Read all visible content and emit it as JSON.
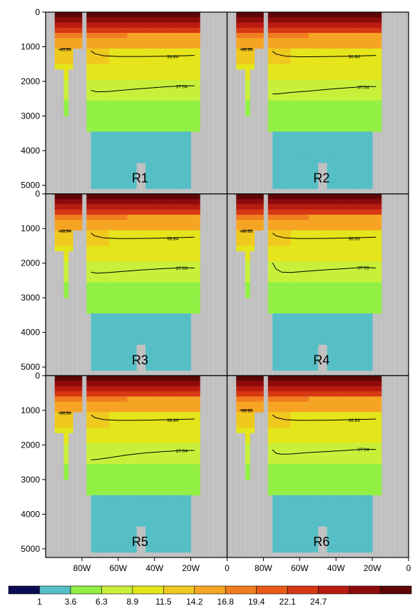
{
  "chart_data": {
    "type": "heatmap",
    "description_scale": "depth section",
    "colors": {
      "land": "#c0c0c0",
      "outline": "#000000"
    },
    "colorbar": {
      "labels": [
        "1",
        "3.6",
        "6.3",
        "8.9",
        "11.5",
        "14.2",
        "16.8",
        "19.4",
        "22.1",
        "24.7"
      ],
      "colors": [
        "#0c0c54",
        "#56bfc6",
        "#92f045",
        "#c8f03b",
        "#e5e51c",
        "#f0c91e",
        "#f5a523",
        "#f27d20",
        "#ea5a19",
        "#d63815",
        "#b81c10",
        "#8e0b0b",
        "#5e0606"
      ]
    },
    "x_axis": {
      "ticks": [
        "80W",
        "60W",
        "40W",
        "20W",
        "0"
      ]
    },
    "y_axis": {
      "ticks": [
        "0",
        "1000",
        "2000",
        "3000",
        "4000",
        "5000"
      ]
    },
    "panels": [
      {
        "label": "R1",
        "contours": [
          {
            "label": "36.84",
            "points": [
              [
                -93,
                1080
              ],
              [
                -89,
                1060
              ],
              [
                -86,
                1060
              ]
            ]
          },
          {
            "label": "36.84",
            "points": [
              [
                -75,
                1120
              ],
              [
                -73,
                1200
              ],
              [
                -68,
                1260
              ],
              [
                -60,
                1280
              ],
              [
                -45,
                1280
              ],
              [
                -30,
                1270
              ],
              [
                -18,
                1250
              ]
            ]
          },
          {
            "label": "37.04",
            "points": [
              [
                -75,
                2260
              ],
              [
                -72,
                2300
              ],
              [
                -65,
                2290
              ],
              [
                -55,
                2240
              ],
              [
                -45,
                2200
              ],
              [
                -35,
                2160
              ],
              [
                -25,
                2130
              ],
              [
                -18,
                2130
              ]
            ]
          }
        ]
      },
      {
        "label": "R2",
        "contours": [
          {
            "label": "36.84",
            "points": [
              [
                -93,
                1080
              ],
              [
                -89,
                1060
              ],
              [
                -86,
                1060
              ]
            ]
          },
          {
            "label": "36.84",
            "points": [
              [
                -75,
                1130
              ],
              [
                -73,
                1210
              ],
              [
                -68,
                1270
              ],
              [
                -60,
                1290
              ],
              [
                -45,
                1285
              ],
              [
                -30,
                1270
              ],
              [
                -18,
                1250
              ]
            ]
          },
          {
            "label": "37.04",
            "points": [
              [
                -75,
                2360
              ],
              [
                -72,
                2360
              ],
              [
                -65,
                2320
              ],
              [
                -55,
                2280
              ],
              [
                -45,
                2230
              ],
              [
                -35,
                2190
              ],
              [
                -25,
                2150
              ],
              [
                -18,
                2150
              ]
            ]
          }
        ]
      },
      {
        "label": "R3",
        "contours": [
          {
            "label": "36.84",
            "points": [
              [
                -93,
                1080
              ],
              [
                -89,
                1060
              ],
              [
                -86,
                1060
              ]
            ]
          },
          {
            "label": "36.84",
            "points": [
              [
                -75,
                1130
              ],
              [
                -73,
                1210
              ],
              [
                -68,
                1270
              ],
              [
                -60,
                1290
              ],
              [
                -45,
                1285
              ],
              [
                -30,
                1270
              ],
              [
                -18,
                1250
              ]
            ]
          },
          {
            "label": "37.03",
            "points": [
              [
                -75,
                2260
              ],
              [
                -72,
                2290
              ],
              [
                -65,
                2270
              ],
              [
                -55,
                2230
              ],
              [
                -45,
                2190
              ],
              [
                -35,
                2160
              ],
              [
                -25,
                2130
              ],
              [
                -18,
                2140
              ]
            ]
          }
        ]
      },
      {
        "label": "R4",
        "contours": [
          {
            "label": "36.83",
            "points": [
              [
                -93,
                1080
              ],
              [
                -89,
                1060
              ],
              [
                -86,
                1060
              ]
            ]
          },
          {
            "label": "36.83",
            "points": [
              [
                -75,
                1130
              ],
              [
                -73,
                1210
              ],
              [
                -68,
                1270
              ],
              [
                -60,
                1290
              ],
              [
                -45,
                1285
              ],
              [
                -30,
                1270
              ],
              [
                -18,
                1250
              ]
            ]
          },
          {
            "label": "37.03",
            "points": [
              [
                -75,
                1990
              ],
              [
                -73,
                2170
              ],
              [
                -70,
                2260
              ],
              [
                -65,
                2270
              ],
              [
                -55,
                2230
              ],
              [
                -45,
                2190
              ],
              [
                -35,
                2160
              ],
              [
                -25,
                2120
              ],
              [
                -18,
                2140
              ]
            ]
          }
        ]
      },
      {
        "label": "R5",
        "contours": [
          {
            "label": "36.84",
            "points": [
              [
                -93,
                1080
              ],
              [
                -89,
                1060
              ],
              [
                -86,
                1060
              ]
            ]
          },
          {
            "label": "36.84",
            "points": [
              [
                -75,
                1130
              ],
              [
                -73,
                1210
              ],
              [
                -68,
                1270
              ],
              [
                -60,
                1290
              ],
              [
                -45,
                1285
              ],
              [
                -30,
                1270
              ],
              [
                -18,
                1250
              ]
            ]
          },
          {
            "label": "37.04",
            "points": [
              [
                -75,
                2430
              ],
              [
                -72,
                2420
              ],
              [
                -65,
                2370
              ],
              [
                -55,
                2290
              ],
              [
                -45,
                2230
              ],
              [
                -35,
                2190
              ],
              [
                -25,
                2160
              ],
              [
                -18,
                2160
              ]
            ]
          }
        ]
      },
      {
        "label": "R6",
        "contours": [
          {
            "label": "36.83",
            "points": [
              [
                -93,
                1000
              ],
              [
                -89,
                990
              ],
              [
                -86,
                990
              ]
            ]
          },
          {
            "label": "36.83",
            "points": [
              [
                -75,
                1130
              ],
              [
                -73,
                1210
              ],
              [
                -68,
                1270
              ],
              [
                -60,
                1290
              ],
              [
                -45,
                1285
              ],
              [
                -30,
                1270
              ],
              [
                -18,
                1250
              ]
            ]
          },
          {
            "label": "37.04",
            "points": [
              [
                -75,
                2140
              ],
              [
                -73,
                2240
              ],
              [
                -70,
                2270
              ],
              [
                -65,
                2260
              ],
              [
                -55,
                2220
              ],
              [
                -45,
                2190
              ],
              [
                -35,
                2160
              ],
              [
                -25,
                2120
              ],
              [
                -18,
                2130
              ]
            ]
          }
        ]
      }
    ]
  }
}
